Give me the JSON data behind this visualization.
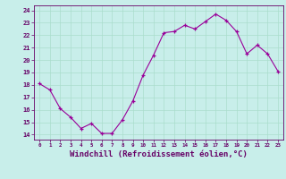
{
  "x": [
    0,
    1,
    2,
    3,
    4,
    5,
    6,
    7,
    8,
    9,
    10,
    11,
    12,
    13,
    14,
    15,
    16,
    17,
    18,
    19,
    20,
    21,
    22,
    23
  ],
  "y": [
    18.1,
    17.6,
    16.1,
    15.4,
    14.5,
    14.9,
    14.1,
    14.1,
    15.2,
    16.7,
    18.8,
    20.4,
    22.2,
    22.3,
    22.8,
    22.5,
    23.1,
    23.7,
    23.2,
    22.3,
    20.5,
    21.2,
    20.5,
    19.1
  ],
  "line_color": "#990099",
  "marker": "+",
  "bg_color": "#c8eeea",
  "grid_color": "#aaddcc",
  "xlabel": "Windchill (Refroidissement éolien,°C)",
  "xlabel_fontsize": 6.5,
  "ytick_labels": [
    "14",
    "15",
    "16",
    "17",
    "18",
    "19",
    "20",
    "21",
    "22",
    "23",
    "24"
  ],
  "ytick_values": [
    14,
    15,
    16,
    17,
    18,
    19,
    20,
    21,
    22,
    23,
    24
  ],
  "xtick_labels": [
    "0",
    "1",
    "2",
    "3",
    "4",
    "5",
    "6",
    "7",
    "8",
    "9",
    "10",
    "11",
    "12",
    "13",
    "14",
    "15",
    "16",
    "17",
    "18",
    "19",
    "20",
    "21",
    "22",
    "23"
  ],
  "ylim": [
    13.6,
    24.4
  ],
  "xlim": [
    -0.5,
    23.5
  ],
  "axis_color": "#660066"
}
